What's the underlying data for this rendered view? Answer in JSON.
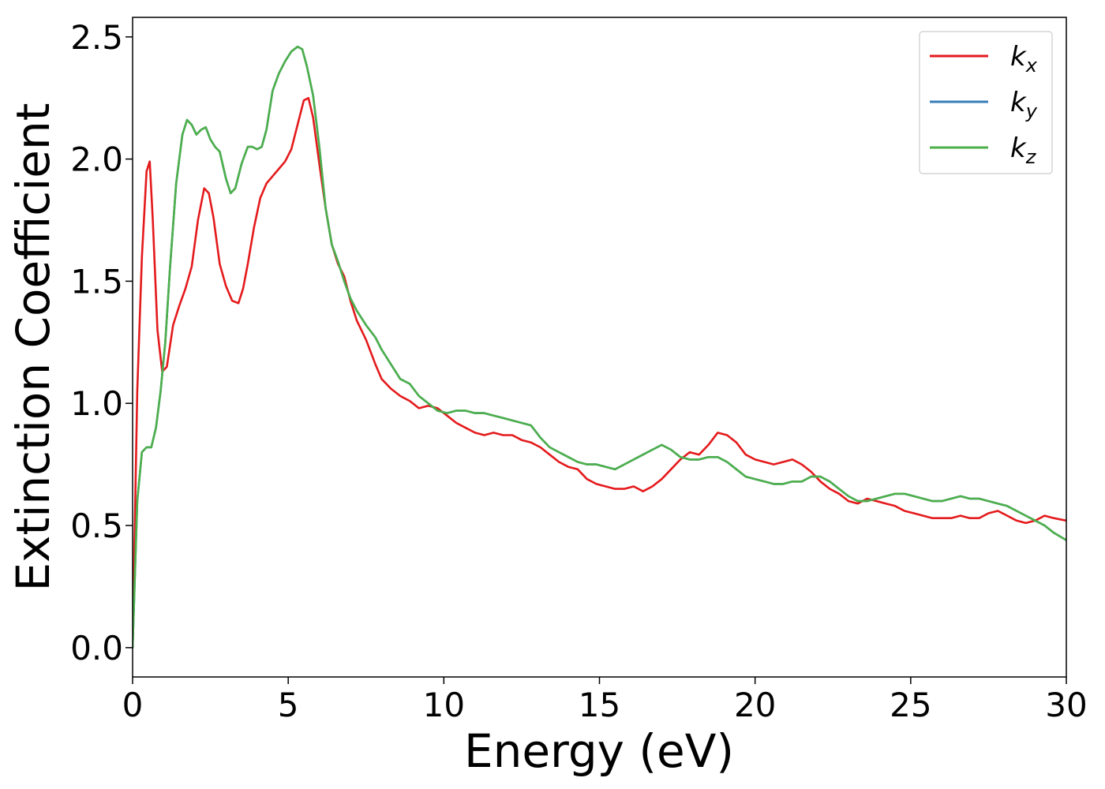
{
  "chart_data": {
    "type": "line",
    "title": "",
    "xlabel": "Energy (eV)",
    "ylabel": "Extinction Coefficient",
    "xlim": [
      0,
      30
    ],
    "ylim": [
      -0.12,
      2.58
    ],
    "xticks": [
      0,
      5,
      10,
      15,
      20,
      25,
      30
    ],
    "xtick_labels": [
      "0",
      "5",
      "10",
      "15",
      "20",
      "25",
      "30"
    ],
    "yticks": [
      0.0,
      0.5,
      1.0,
      1.5,
      2.0,
      2.5
    ],
    "ytick_labels": [
      "0.0",
      "0.5",
      "1.0",
      "1.5",
      "2.0",
      "2.5"
    ],
    "grid": false,
    "legend_position": "top-right",
    "series": [
      {
        "name": "k",
        "subscript": "x",
        "color": "#e41a1c",
        "x": [
          0,
          0.15,
          0.3,
          0.45,
          0.55,
          0.65,
          0.8,
          0.95,
          1.1,
          1.3,
          1.5,
          1.7,
          1.9,
          2.1,
          2.3,
          2.45,
          2.6,
          2.8,
          3.0,
          3.2,
          3.4,
          3.55,
          3.7,
          3.9,
          4.1,
          4.3,
          4.5,
          4.7,
          4.9,
          5.1,
          5.3,
          5.5,
          5.65,
          5.8,
          6.0,
          6.2,
          6.4,
          6.6,
          6.8,
          7.0,
          7.2,
          7.5,
          7.8,
          8.0,
          8.3,
          8.6,
          8.9,
          9.2,
          9.5,
          9.8,
          10.1,
          10.4,
          10.7,
          11.0,
          11.3,
          11.6,
          11.9,
          12.2,
          12.5,
          12.8,
          13.1,
          13.4,
          13.7,
          14.0,
          14.3,
          14.6,
          14.9,
          15.2,
          15.5,
          15.8,
          16.1,
          16.4,
          16.7,
          17.0,
          17.3,
          17.6,
          17.9,
          18.2,
          18.5,
          18.8,
          19.1,
          19.4,
          19.7,
          20.0,
          20.3,
          20.6,
          20.9,
          21.2,
          21.5,
          21.8,
          22.1,
          22.4,
          22.7,
          23.0,
          23.3,
          23.6,
          23.9,
          24.2,
          24.5,
          24.8,
          25.1,
          25.4,
          25.7,
          26.0,
          26.3,
          26.6,
          26.9,
          27.2,
          27.5,
          27.8,
          28.1,
          28.4,
          28.7,
          29.0,
          29.3,
          29.6,
          30.0
        ],
        "y": [
          0.0,
          1.05,
          1.6,
          1.95,
          1.99,
          1.75,
          1.3,
          1.13,
          1.15,
          1.32,
          1.4,
          1.47,
          1.56,
          1.75,
          1.88,
          1.86,
          1.76,
          1.57,
          1.48,
          1.42,
          1.41,
          1.47,
          1.57,
          1.72,
          1.84,
          1.9,
          1.93,
          1.96,
          1.99,
          2.04,
          2.14,
          2.24,
          2.25,
          2.17,
          1.98,
          1.8,
          1.65,
          1.57,
          1.52,
          1.42,
          1.34,
          1.26,
          1.16,
          1.1,
          1.06,
          1.03,
          1.01,
          0.98,
          0.99,
          0.98,
          0.95,
          0.92,
          0.9,
          0.88,
          0.87,
          0.88,
          0.87,
          0.87,
          0.85,
          0.84,
          0.82,
          0.79,
          0.76,
          0.74,
          0.73,
          0.69,
          0.67,
          0.66,
          0.65,
          0.65,
          0.66,
          0.64,
          0.66,
          0.69,
          0.73,
          0.77,
          0.8,
          0.79,
          0.83,
          0.88,
          0.87,
          0.84,
          0.79,
          0.77,
          0.76,
          0.75,
          0.76,
          0.77,
          0.75,
          0.72,
          0.68,
          0.65,
          0.63,
          0.6,
          0.59,
          0.61,
          0.6,
          0.59,
          0.58,
          0.56,
          0.55,
          0.54,
          0.53,
          0.53,
          0.53,
          0.54,
          0.53,
          0.53,
          0.55,
          0.56,
          0.54,
          0.52,
          0.51,
          0.52,
          0.54,
          0.53,
          0.52
        ]
      },
      {
        "name": "k",
        "subscript": "y",
        "color": "#377eb8",
        "x": [
          0,
          0.15,
          0.3,
          0.45,
          0.6,
          0.75,
          0.9,
          1.05,
          1.2,
          1.4,
          1.6,
          1.75,
          1.9,
          2.05,
          2.2,
          2.35,
          2.5,
          2.65,
          2.8,
          3.0,
          3.15,
          3.3,
          3.5,
          3.7,
          3.85,
          4.0,
          4.15,
          4.3,
          4.5,
          4.7,
          4.9,
          5.1,
          5.3,
          5.45,
          5.6,
          5.8,
          6.0,
          6.2,
          6.4,
          6.6,
          6.8,
          7.0,
          7.2,
          7.5,
          7.8,
          8.0,
          8.3,
          8.6,
          8.9,
          9.2,
          9.5,
          9.8,
          10.1,
          10.4,
          10.7,
          11.0,
          11.3,
          11.6,
          11.9,
          12.2,
          12.5,
          12.8,
          13.1,
          13.4,
          13.7,
          14.0,
          14.3,
          14.6,
          14.9,
          15.2,
          15.5,
          15.8,
          16.1,
          16.4,
          16.7,
          17.0,
          17.3,
          17.6,
          17.9,
          18.2,
          18.5,
          18.8,
          19.1,
          19.4,
          19.7,
          20.0,
          20.3,
          20.6,
          20.9,
          21.2,
          21.5,
          21.8,
          22.1,
          22.4,
          22.7,
          23.0,
          23.3,
          23.6,
          23.9,
          24.2,
          24.5,
          24.8,
          25.1,
          25.4,
          25.7,
          26.0,
          26.3,
          26.6,
          26.9,
          27.2,
          27.5,
          27.8,
          28.1,
          28.4,
          28.7,
          29.0,
          29.3,
          29.6,
          30.0
        ],
        "y": [
          0.0,
          0.6,
          0.8,
          0.82,
          0.82,
          0.9,
          1.05,
          1.25,
          1.55,
          1.9,
          2.1,
          2.16,
          2.14,
          2.1,
          2.12,
          2.13,
          2.08,
          2.05,
          2.03,
          1.92,
          1.86,
          1.88,
          1.98,
          2.05,
          2.05,
          2.04,
          2.05,
          2.12,
          2.28,
          2.35,
          2.4,
          2.44,
          2.46,
          2.45,
          2.38,
          2.26,
          2.05,
          1.8,
          1.65,
          1.58,
          1.5,
          1.43,
          1.38,
          1.32,
          1.27,
          1.22,
          1.16,
          1.1,
          1.08,
          1.03,
          1.0,
          0.97,
          0.96,
          0.97,
          0.97,
          0.96,
          0.96,
          0.95,
          0.94,
          0.93,
          0.92,
          0.91,
          0.86,
          0.82,
          0.8,
          0.78,
          0.76,
          0.75,
          0.75,
          0.74,
          0.73,
          0.75,
          0.77,
          0.79,
          0.81,
          0.83,
          0.81,
          0.78,
          0.77,
          0.77,
          0.78,
          0.78,
          0.76,
          0.73,
          0.7,
          0.69,
          0.68,
          0.67,
          0.67,
          0.68,
          0.68,
          0.7,
          0.7,
          0.68,
          0.65,
          0.62,
          0.6,
          0.6,
          0.61,
          0.62,
          0.63,
          0.63,
          0.62,
          0.61,
          0.6,
          0.6,
          0.61,
          0.62,
          0.61,
          0.61,
          0.6,
          0.59,
          0.58,
          0.56,
          0.54,
          0.52,
          0.5,
          0.47,
          0.44
        ]
      },
      {
        "name": "k",
        "subscript": "z",
        "color": "#4daf4a",
        "x": [
          0,
          0.15,
          0.3,
          0.45,
          0.6,
          0.75,
          0.9,
          1.05,
          1.2,
          1.4,
          1.6,
          1.75,
          1.9,
          2.05,
          2.2,
          2.35,
          2.5,
          2.65,
          2.8,
          3.0,
          3.15,
          3.3,
          3.5,
          3.7,
          3.85,
          4.0,
          4.15,
          4.3,
          4.5,
          4.7,
          4.9,
          5.1,
          5.3,
          5.45,
          5.6,
          5.8,
          6.0,
          6.2,
          6.4,
          6.6,
          6.8,
          7.0,
          7.2,
          7.5,
          7.8,
          8.0,
          8.3,
          8.6,
          8.9,
          9.2,
          9.5,
          9.8,
          10.1,
          10.4,
          10.7,
          11.0,
          11.3,
          11.6,
          11.9,
          12.2,
          12.5,
          12.8,
          13.1,
          13.4,
          13.7,
          14.0,
          14.3,
          14.6,
          14.9,
          15.2,
          15.5,
          15.8,
          16.1,
          16.4,
          16.7,
          17.0,
          17.3,
          17.6,
          17.9,
          18.2,
          18.5,
          18.8,
          19.1,
          19.4,
          19.7,
          20.0,
          20.3,
          20.6,
          20.9,
          21.2,
          21.5,
          21.8,
          22.1,
          22.4,
          22.7,
          23.0,
          23.3,
          23.6,
          23.9,
          24.2,
          24.5,
          24.8,
          25.1,
          25.4,
          25.7,
          26.0,
          26.3,
          26.6,
          26.9,
          27.2,
          27.5,
          27.8,
          28.1,
          28.4,
          28.7,
          29.0,
          29.3,
          29.6,
          30.0
        ],
        "y": [
          0.0,
          0.6,
          0.8,
          0.82,
          0.82,
          0.9,
          1.05,
          1.25,
          1.55,
          1.9,
          2.1,
          2.16,
          2.14,
          2.1,
          2.12,
          2.13,
          2.08,
          2.05,
          2.03,
          1.92,
          1.86,
          1.88,
          1.98,
          2.05,
          2.05,
          2.04,
          2.05,
          2.12,
          2.28,
          2.35,
          2.4,
          2.44,
          2.46,
          2.45,
          2.38,
          2.26,
          2.05,
          1.8,
          1.65,
          1.58,
          1.5,
          1.43,
          1.38,
          1.32,
          1.27,
          1.22,
          1.16,
          1.1,
          1.08,
          1.03,
          1.0,
          0.97,
          0.96,
          0.97,
          0.97,
          0.96,
          0.96,
          0.95,
          0.94,
          0.93,
          0.92,
          0.91,
          0.86,
          0.82,
          0.8,
          0.78,
          0.76,
          0.75,
          0.75,
          0.74,
          0.73,
          0.75,
          0.77,
          0.79,
          0.81,
          0.83,
          0.81,
          0.78,
          0.77,
          0.77,
          0.78,
          0.78,
          0.76,
          0.73,
          0.7,
          0.69,
          0.68,
          0.67,
          0.67,
          0.68,
          0.68,
          0.7,
          0.7,
          0.68,
          0.65,
          0.62,
          0.6,
          0.6,
          0.61,
          0.62,
          0.63,
          0.63,
          0.62,
          0.61,
          0.6,
          0.6,
          0.61,
          0.62,
          0.61,
          0.61,
          0.6,
          0.59,
          0.58,
          0.56,
          0.54,
          0.52,
          0.5,
          0.47,
          0.44
        ]
      }
    ]
  }
}
